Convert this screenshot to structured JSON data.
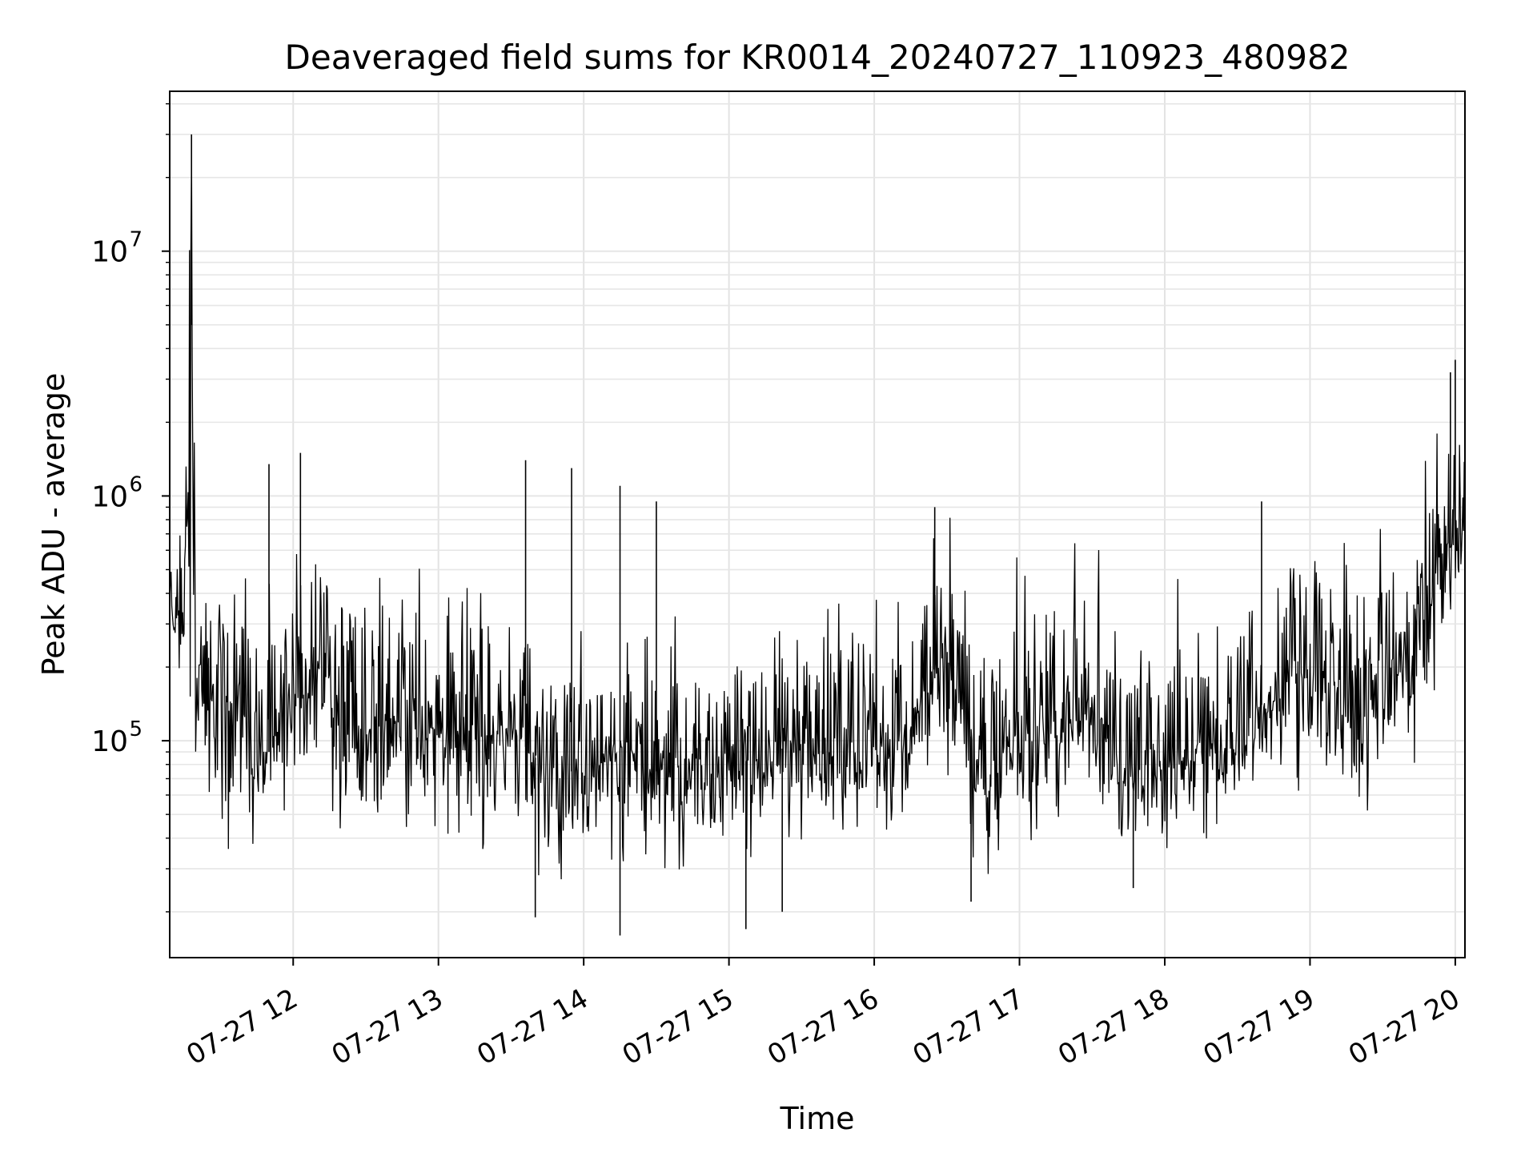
{
  "chart_data": {
    "type": "line",
    "title": "Deaveraged field sums for KR0014_20240727_110923_480982",
    "xlabel": "Time",
    "ylabel": "Peak ADU - average",
    "yscale": "log",
    "grid": true,
    "xlim": [
      "2024-07-27 11:09",
      "2024-07-27 20:04"
    ],
    "ylim": [
      13000,
      45000000
    ],
    "xticks": [
      {
        "time": "2024-07-27 12:00",
        "label": "07-27 12"
      },
      {
        "time": "2024-07-27 13:00",
        "label": "07-27 13"
      },
      {
        "time": "2024-07-27 14:00",
        "label": "07-27 14"
      },
      {
        "time": "2024-07-27 15:00",
        "label": "07-27 15"
      },
      {
        "time": "2024-07-27 16:00",
        "label": "07-27 16"
      },
      {
        "time": "2024-07-27 17:00",
        "label": "07-27 17"
      },
      {
        "time": "2024-07-27 18:00",
        "label": "07-27 18"
      },
      {
        "time": "2024-07-27 19:00",
        "label": "07-27 19"
      },
      {
        "time": "2024-07-27 20:00",
        "label": "07-27 20"
      }
    ],
    "yticks": [
      {
        "value": 100000,
        "base": "10",
        "exp": "5"
      },
      {
        "value": 1000000,
        "base": "10",
        "exp": "6"
      },
      {
        "value": 10000000,
        "base": "10",
        "exp": "7"
      }
    ],
    "series_color": "#000000",
    "series": [
      {
        "x": [
          "2024-07-27 11:09",
          "2024-07-27 11:15",
          "2024-07-27 11:18",
          "2024-07-27 11:20",
          "2024-07-27 11:25",
          "2024-07-27 11:30",
          "2024-07-27 11:40",
          "2024-07-27 11:50",
          "2024-07-27 12:00",
          "2024-07-27 12:10",
          "2024-07-27 12:20",
          "2024-07-27 12:30",
          "2024-07-27 12:45",
          "2024-07-27 13:00",
          "2024-07-27 13:15",
          "2024-07-27 13:30",
          "2024-07-27 13:45",
          "2024-07-27 14:00",
          "2024-07-27 14:15",
          "2024-07-27 14:30",
          "2024-07-27 14:45",
          "2024-07-27 15:00",
          "2024-07-27 15:15",
          "2024-07-27 15:30",
          "2024-07-27 15:45",
          "2024-07-27 16:00",
          "2024-07-27 16:15",
          "2024-07-27 16:30",
          "2024-07-27 16:45",
          "2024-07-27 17:00",
          "2024-07-27 17:15",
          "2024-07-27 17:30",
          "2024-07-27 17:45",
          "2024-07-27 18:00",
          "2024-07-27 18:15",
          "2024-07-27 18:30",
          "2024-07-27 18:45",
          "2024-07-27 19:00",
          "2024-07-27 19:15",
          "2024-07-27 19:30",
          "2024-07-27 19:45",
          "2024-07-27 20:00",
          "2024-07-27 20:04"
        ],
        "values": [
          350000,
          300000,
          5000000,
          200000,
          150000,
          170000,
          110000,
          90000,
          150000,
          200000,
          150000,
          110000,
          120000,
          110000,
          100000,
          110000,
          75000,
          75000,
          85000,
          75000,
          80000,
          85000,
          80000,
          110000,
          100000,
          90000,
          110000,
          230000,
          70000,
          110000,
          120000,
          150000,
          65000,
          80000,
          100000,
          95000,
          170000,
          180000,
          160000,
          180000,
          260000,
          700000,
          650000
        ],
        "envelope_low": [
          250000,
          200000,
          120000,
          110000,
          80000,
          50000,
          45000,
          50000,
          90000,
          70000,
          60000,
          50000,
          55000,
          60000,
          50000,
          45000,
          35000,
          35000,
          40000,
          40000,
          40000,
          40000,
          40000,
          55000,
          55000,
          50000,
          55000,
          100000,
          35000,
          50000,
          55000,
          70000,
          35000,
          50000,
          55000,
          60000,
          90000,
          80000,
          60000,
          70000,
          120000,
          350000,
          350000
        ],
        "envelope_high": [
          550000,
          600000,
          30000000,
          500000,
          350000,
          400000,
          300000,
          250000,
          400000,
          500000,
          400000,
          300000,
          350000,
          300000,
          300000,
          300000,
          180000,
          170000,
          200000,
          180000,
          200000,
          220000,
          200000,
          300000,
          250000,
          250000,
          300000,
          500000,
          250000,
          350000,
          350000,
          400000,
          180000,
          250000,
          300000,
          300000,
          450000,
          500000,
          400000,
          450000,
          700000,
          1800000,
          1500000
        ],
        "spikes": [
          {
            "x": "2024-07-27 11:18",
            "value": 30000000
          },
          {
            "x": "2024-07-27 11:18",
            "value": 5000000
          },
          {
            "x": "2024-07-27 11:50",
            "value": 1350000
          },
          {
            "x": "2024-07-27 12:03",
            "value": 1500000
          },
          {
            "x": "2024-07-27 13:36",
            "value": 1400000
          },
          {
            "x": "2024-07-27 13:55",
            "value": 1300000
          },
          {
            "x": "2024-07-27 14:15",
            "value": 1100000
          },
          {
            "x": "2024-07-27 14:30",
            "value": 950000
          },
          {
            "x": "2024-07-27 16:25",
            "value": 900000
          },
          {
            "x": "2024-07-27 18:40",
            "value": 950000
          },
          {
            "x": "2024-07-27 19:58",
            "value": 3200000
          },
          {
            "x": "2024-07-27 20:00",
            "value": 3600000
          },
          {
            "x": "2024-07-27 13:40",
            "value": 19000
          },
          {
            "x": "2024-07-27 14:15",
            "value": 16000
          },
          {
            "x": "2024-07-27 15:07",
            "value": 17000
          },
          {
            "x": "2024-07-27 15:22",
            "value": 20000
          },
          {
            "x": "2024-07-27 16:40",
            "value": 22000
          },
          {
            "x": "2024-07-27 17:47",
            "value": 25000
          }
        ]
      }
    ]
  }
}
